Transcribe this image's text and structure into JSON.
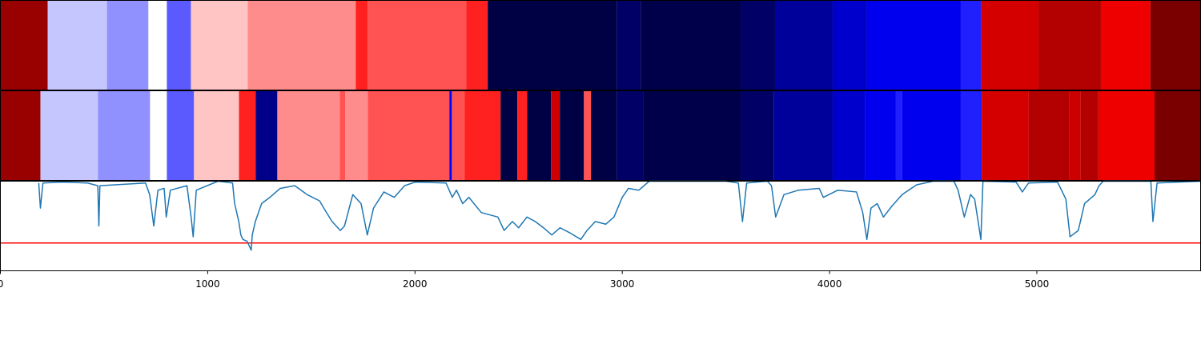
{
  "chart_data": {
    "type": "segmentation",
    "xlim": [
      0,
      5790
    ],
    "xticks": [
      0,
      1000,
      2000,
      3000,
      4000,
      5000
    ],
    "rows": [
      {
        "bounds": [
          0,
          228,
          514,
          714,
          803,
          919,
          1193,
          1714,
          1772,
          2247,
          2351,
          2973,
          3089,
          3571,
          3737,
          4015,
          4181,
          4633,
          4730,
          5008,
          5309,
          5548,
          5790
        ],
        "colors": [
          "#990000",
          "#c6c6ff",
          "#9090ff",
          "#ffffff",
          "#5a5aff",
          "#ffc4c4",
          "#ff8c8c",
          "#ff2020",
          "#ff5252",
          "#ff2020",
          "#000044",
          "#000066",
          "#00004a",
          "#000066",
          "#00009a",
          "#0000cc",
          "#0000ee",
          "#2020ff",
          "#d40000",
          "#b30000",
          "#ee0000",
          "#7a0000"
        ]
      },
      {
        "bounds": [
          0,
          193,
          471,
          722,
          803,
          934,
          1151,
          1232,
          1336,
          1637,
          1664,
          1772,
          2166,
          2178,
          2239,
          2413,
          2494,
          2541,
          2656,
          2699,
          2815,
          2849,
          2973,
          3100,
          3571,
          3730,
          4015,
          4170,
          4320,
          4351,
          4633,
          4734,
          4961,
          5158,
          5212,
          5297,
          5568,
          5790
        ],
        "colors": [
          "#990000",
          "#c6c6ff",
          "#9090ff",
          "#ffffff",
          "#5a5aff",
          "#ffc4c4",
          "#ff2020",
          "#000088",
          "#ff8c8c",
          "#ff5252",
          "#ff8c8c",
          "#ff5252",
          "#0000ff",
          "#ff5252",
          "#ff2020",
          "#000044",
          "#ff2020",
          "#000044",
          "#cc0000",
          "#000044",
          "#ff5252",
          "#000044",
          "#000066",
          "#00004a",
          "#000066",
          "#00009a",
          "#0000cc",
          "#0000ee",
          "#2020ff",
          "#0000ee",
          "#2020ff",
          "#d40000",
          "#b30000",
          "#cc0000",
          "#b30000",
          "#ee0000",
          "#7a0000"
        ]
      }
    ],
    "ylim": [
      0,
      1
    ],
    "threshold": {
      "value": 0.31,
      "color": "#ff0000"
    },
    "series": [
      {
        "color": "#1f77b4",
        "x": [
          185,
          193,
          205,
          300,
          420,
          470,
          475,
          480,
          700,
          720,
          740,
          760,
          790,
          800,
          820,
          900,
          920,
          930,
          945,
          1050,
          1120,
          1130,
          1150,
          1160,
          1170,
          1190,
          1210,
          1215,
          1230,
          1260,
          1300,
          1350,
          1420,
          1480,
          1540,
          1560,
          1600,
          1640,
          1660,
          1700,
          1740,
          1770,
          1800,
          1850,
          1900,
          1950,
          2000,
          2150,
          2180,
          2200,
          2230,
          2260,
          2320,
          2400,
          2430,
          2470,
          2500,
          2540,
          2580,
          2620,
          2660,
          2700,
          2750,
          2800,
          2830,
          2870,
          2920,
          2960,
          3000,
          3030,
          3080,
          3130,
          3500,
          3560,
          3580,
          3600,
          3700,
          3720,
          3740,
          3780,
          3850,
          3950,
          3970,
          4040,
          4130,
          4160,
          4180,
          4200,
          4230,
          4260,
          4300,
          4350,
          4420,
          4500,
          4600,
          4620,
          4650,
          4680,
          4700,
          4730,
          4740,
          4900,
          4930,
          4960,
          5100,
          5140,
          5160,
          5200,
          5230,
          5280,
          5300,
          5320,
          5550,
          5560,
          5580,
          5790
        ],
        "values": [
          0.98,
          0.7,
          0.98,
          0.99,
          0.98,
          0.95,
          0.5,
          0.95,
          0.98,
          0.85,
          0.5,
          0.9,
          0.92,
          0.6,
          0.9,
          0.95,
          0.6,
          0.38,
          0.9,
          1,
          0.98,
          0.75,
          0.55,
          0.4,
          0.35,
          0.33,
          0.23,
          0.4,
          0.55,
          0.75,
          0.82,
          0.92,
          0.95,
          0.85,
          0.78,
          0.7,
          0.55,
          0.45,
          0.5,
          0.85,
          0.75,
          0.4,
          0.7,
          0.88,
          0.82,
          0.95,
          0.99,
          0.98,
          0.82,
          0.9,
          0.75,
          0.82,
          0.65,
          0.6,
          0.45,
          0.55,
          0.48,
          0.6,
          0.55,
          0.48,
          0.4,
          0.48,
          0.42,
          0.35,
          0.45,
          0.55,
          0.52,
          0.6,
          0.82,
          0.92,
          0.9,
          1,
          1,
          0.98,
          0.55,
          0.98,
          1,
          0.95,
          0.6,
          0.85,
          0.9,
          0.92,
          0.82,
          0.9,
          0.88,
          0.65,
          0.35,
          0.7,
          0.75,
          0.6,
          0.72,
          0.85,
          0.96,
          1,
          1,
          0.9,
          0.6,
          0.85,
          0.8,
          0.35,
          1,
          0.99,
          0.88,
          0.98,
          0.99,
          0.8,
          0.38,
          0.45,
          0.75,
          0.85,
          0.95,
          1,
          1,
          0.55,
          0.98,
          1
        ]
      }
    ]
  }
}
